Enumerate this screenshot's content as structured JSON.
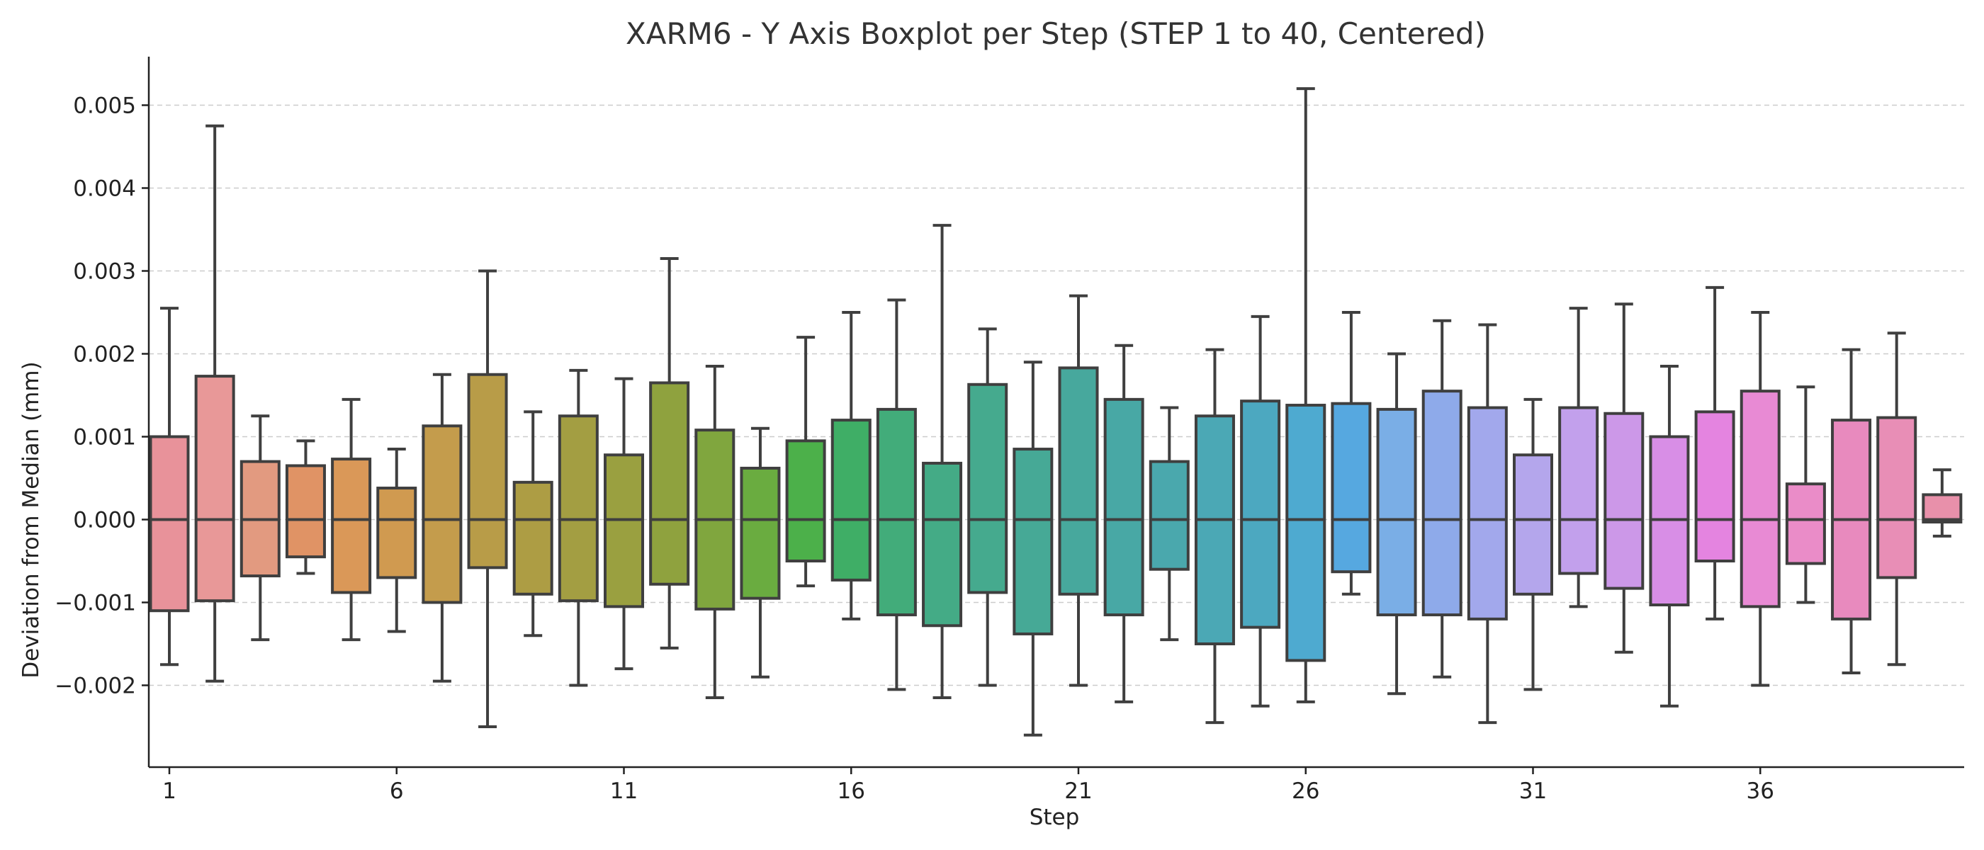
{
  "chart_data": {
    "type": "boxplot",
    "title": "XARM6 - Y Axis Boxplot per Step (STEP 1 to 40, Centered)",
    "xlabel": "Step",
    "ylabel": "Deviation from Median (mm)",
    "ylim": [
      -0.00295,
      0.0057
    ],
    "yticks": [
      -0.002,
      -0.001,
      0.0,
      0.001,
      0.002,
      0.003,
      0.004,
      0.005
    ],
    "ytick_labels": [
      "−0.002",
      "−0.001",
      "0.000",
      "0.001",
      "0.002",
      "0.003",
      "0.004",
      "0.005"
    ],
    "xticks": [
      1,
      6,
      11,
      16,
      21,
      26,
      31,
      36
    ],
    "xtick_labels": [
      "1",
      "6",
      "11",
      "16",
      "21",
      "26",
      "31",
      "36"
    ],
    "grid": "y-dashed",
    "series": [
      {
        "step": 1,
        "whislo": -0.00175,
        "q1": -0.0011,
        "med": 0,
        "q3": 0.001,
        "whishi": 0.00255,
        "color": "#e8929a"
      },
      {
        "step": 2,
        "whislo": -0.00195,
        "q1": -0.00098,
        "med": 0,
        "q3": 0.00173,
        "whishi": 0.00475,
        "color": "#e89898"
      },
      {
        "step": 3,
        "whislo": -0.00145,
        "q1": -0.00068,
        "med": 0,
        "q3": 0.0007,
        "whishi": 0.00125,
        "color": "#e29a80"
      },
      {
        "step": 4,
        "whislo": -0.00065,
        "q1": -0.00045,
        "med": 0,
        "q3": 0.00065,
        "whishi": 0.00095,
        "color": "#e09365"
      },
      {
        "step": 5,
        "whislo": -0.00145,
        "q1": -0.00088,
        "med": 0,
        "q3": 0.00073,
        "whishi": 0.00145,
        "color": "#da9858"
      },
      {
        "step": 6,
        "whislo": -0.00135,
        "q1": -0.0007,
        "med": 0,
        "q3": 0.00038,
        "whishi": 0.00085,
        "color": "#d09a50"
      },
      {
        "step": 7,
        "whislo": -0.00195,
        "q1": -0.001,
        "med": 0,
        "q3": 0.00113,
        "whishi": 0.00175,
        "color": "#c49c4c"
      },
      {
        "step": 8,
        "whislo": -0.0025,
        "q1": -0.00058,
        "med": 0,
        "q3": 0.00175,
        "whishi": 0.003,
        "color": "#b89c48"
      },
      {
        "step": 9,
        "whislo": -0.0014,
        "q1": -0.0009,
        "med": 0,
        "q3": 0.00045,
        "whishi": 0.0013,
        "color": "#ad9d44"
      },
      {
        "step": 10,
        "whislo": -0.002,
        "q1": -0.00098,
        "med": 0,
        "q3": 0.00125,
        "whishi": 0.0018,
        "color": "#a39e42"
      },
      {
        "step": 11,
        "whislo": -0.0018,
        "q1": -0.00105,
        "med": 0,
        "q3": 0.00078,
        "whishi": 0.0017,
        "color": "#9aa040"
      },
      {
        "step": 12,
        "whislo": -0.00155,
        "q1": -0.00078,
        "med": 0,
        "q3": 0.00165,
        "whishi": 0.00315,
        "color": "#8fa23e"
      },
      {
        "step": 13,
        "whislo": -0.00215,
        "q1": -0.00108,
        "med": 0,
        "q3": 0.00108,
        "whishi": 0.00185,
        "color": "#80a63e"
      },
      {
        "step": 14,
        "whislo": -0.0019,
        "q1": -0.00095,
        "med": 0,
        "q3": 0.00062,
        "whishi": 0.0011,
        "color": "#6aac40"
      },
      {
        "step": 15,
        "whislo": -0.0008,
        "q1": -0.0005,
        "med": 0,
        "q3": 0.00095,
        "whishi": 0.0022,
        "color": "#4cb04a"
      },
      {
        "step": 16,
        "whislo": -0.0012,
        "q1": -0.00073,
        "med": 0,
        "q3": 0.0012,
        "whishi": 0.0025,
        "color": "#3fae66"
      },
      {
        "step": 17,
        "whislo": -0.00205,
        "q1": -0.00115,
        "med": 0,
        "q3": 0.00133,
        "whishi": 0.00265,
        "color": "#42ac7a"
      },
      {
        "step": 18,
        "whislo": -0.00215,
        "q1": -0.00128,
        "med": 0,
        "q3": 0.00068,
        "whishi": 0.00355,
        "color": "#44ab86"
      },
      {
        "step": 19,
        "whislo": -0.002,
        "q1": -0.00088,
        "med": 0,
        "q3": 0.00163,
        "whishi": 0.0023,
        "color": "#45aa8e"
      },
      {
        "step": 20,
        "whislo": -0.0026,
        "q1": -0.00138,
        "med": 0,
        "q3": 0.00085,
        "whishi": 0.0019,
        "color": "#46a996"
      },
      {
        "step": 21,
        "whislo": -0.002,
        "q1": -0.0009,
        "med": 0,
        "q3": 0.00183,
        "whishi": 0.0027,
        "color": "#47a89d"
      },
      {
        "step": 22,
        "whislo": -0.0022,
        "q1": -0.00115,
        "med": 0,
        "q3": 0.00145,
        "whishi": 0.0021,
        "color": "#48a8a5"
      },
      {
        "step": 23,
        "whislo": -0.00145,
        "q1": -0.0006,
        "med": 0,
        "q3": 0.0007,
        "whishi": 0.00135,
        "color": "#4aa8ad"
      },
      {
        "step": 24,
        "whislo": -0.00245,
        "q1": -0.0015,
        "med": 0,
        "q3": 0.00125,
        "whishi": 0.00205,
        "color": "#4ba8b5"
      },
      {
        "step": 25,
        "whislo": -0.00225,
        "q1": -0.0013,
        "med": 0,
        "q3": 0.00143,
        "whishi": 0.00245,
        "color": "#4ca8c0"
      },
      {
        "step": 26,
        "whislo": -0.0022,
        "q1": -0.0017,
        "med": 0,
        "q3": 0.00138,
        "whishi": 0.0052,
        "color": "#4eaad0"
      },
      {
        "step": 27,
        "whislo": -0.0009,
        "q1": -0.00063,
        "med": 0,
        "q3": 0.0014,
        "whishi": 0.0025,
        "color": "#56a8e0"
      },
      {
        "step": 28,
        "whislo": -0.0021,
        "q1": -0.00115,
        "med": 0,
        "q3": 0.00133,
        "whishi": 0.002,
        "color": "#7aaee6"
      },
      {
        "step": 29,
        "whislo": -0.0019,
        "q1": -0.00115,
        "med": 0,
        "q3": 0.00155,
        "whishi": 0.0024,
        "color": "#8eaaea"
      },
      {
        "step": 30,
        "whislo": -0.00245,
        "q1": -0.0012,
        "med": 0,
        "q3": 0.00135,
        "whishi": 0.00235,
        "color": "#a2a8ec"
      },
      {
        "step": 31,
        "whislo": -0.00205,
        "q1": -0.0009,
        "med": 0,
        "q3": 0.00078,
        "whishi": 0.00145,
        "color": "#b4a6ec"
      },
      {
        "step": 32,
        "whislo": -0.00105,
        "q1": -0.00065,
        "med": 0,
        "q3": 0.00135,
        "whishi": 0.00255,
        "color": "#c2a0ec"
      },
      {
        "step": 33,
        "whislo": -0.0016,
        "q1": -0.00083,
        "med": 0,
        "q3": 0.00128,
        "whishi": 0.0026,
        "color": "#cc98e8"
      },
      {
        "step": 34,
        "whislo": -0.00225,
        "q1": -0.00103,
        "med": 0,
        "q3": 0.001,
        "whishi": 0.00185,
        "color": "#d88ee6"
      },
      {
        "step": 35,
        "whislo": -0.0012,
        "q1": -0.0005,
        "med": 0,
        "q3": 0.0013,
        "whishi": 0.0028,
        "color": "#e484e0"
      },
      {
        "step": 36,
        "whislo": -0.002,
        "q1": -0.00105,
        "med": 0,
        "q3": 0.00155,
        "whishi": 0.0025,
        "color": "#e88ad4"
      },
      {
        "step": 37,
        "whislo": -0.001,
        "q1": -0.00053,
        "med": 0,
        "q3": 0.00043,
        "whishi": 0.0016,
        "color": "#ea8cc8"
      },
      {
        "step": 38,
        "whislo": -0.00185,
        "q1": -0.0012,
        "med": 0,
        "q3": 0.0012,
        "whishi": 0.00205,
        "color": "#e88abe"
      },
      {
        "step": 39,
        "whislo": -0.00175,
        "q1": -0.0007,
        "med": 0,
        "q3": 0.00123,
        "whishi": 0.00225,
        "color": "#e88eb6"
      },
      {
        "step": 40,
        "whislo": -0.0002,
        "q1": -3e-05,
        "med": 0,
        "q3": 0.0003,
        "whishi": 0.0006,
        "color": "#e890aa"
      }
    ]
  }
}
